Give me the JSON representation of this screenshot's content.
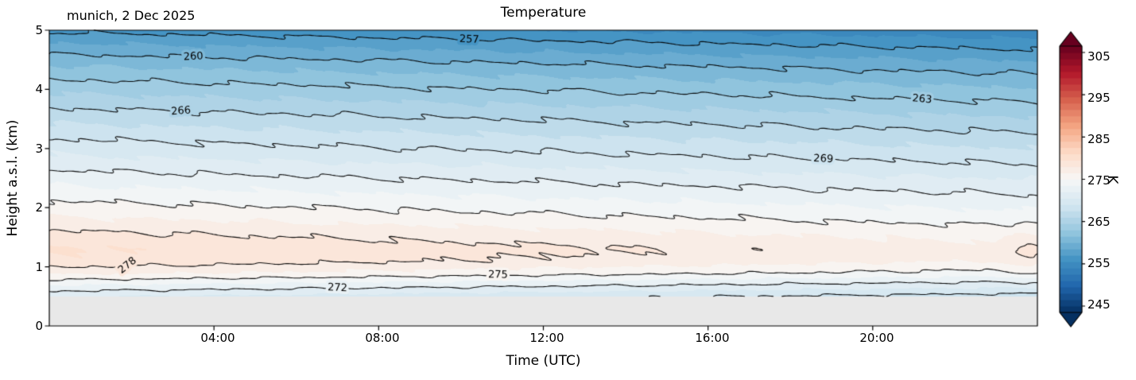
{
  "chart_data": {
    "type": "contour",
    "title": "Temperature",
    "annotation": "munich, 2 Dec 2025",
    "xlabel": "Time (UTC)",
    "ylabel": "Height a.s.l. (km)",
    "x_range_hours": [
      0,
      24
    ],
    "y_range_km": [
      0,
      5
    ],
    "x_ticks": [
      {
        "t": 4,
        "label": "04:00"
      },
      {
        "t": 8,
        "label": "08:00"
      },
      {
        "t": 12,
        "label": "12:00"
      },
      {
        "t": 16,
        "label": "16:00"
      },
      {
        "t": 20,
        "label": "20:00"
      }
    ],
    "y_ticks": [
      {
        "km": 0,
        "label": "0"
      },
      {
        "km": 1,
        "label": "1"
      },
      {
        "km": 2,
        "label": "2"
      },
      {
        "km": 3,
        "label": "3"
      },
      {
        "km": 4,
        "label": "4"
      },
      {
        "km": 5,
        "label": "5"
      }
    ],
    "terrain_height_km": 0.5,
    "terrain_color": "#e8e8e8",
    "grid": false,
    "colorbar": {
      "label": "K",
      "vmin": 243.5,
      "vmax": 306.5,
      "band_step": 1.5,
      "ticks": [
        245,
        255,
        265,
        275,
        285,
        295,
        305
      ],
      "colormap": "RdBu_r",
      "extend": "both",
      "colors": [
        "#053061",
        "#2166ac",
        "#4393c3",
        "#92c5de",
        "#d1e5f0",
        "#f7f7f7",
        "#fddbc7",
        "#f4a582",
        "#d6604d",
        "#b2182b",
        "#67001f"
      ]
    },
    "contour_line_levels": [
      257,
      260,
      263,
      266,
      269,
      272,
      275,
      278
    ],
    "contour_labels": [
      {
        "level": "257",
        "t": 10.2,
        "h": 4.84,
        "rot": 2
      },
      {
        "level": "260",
        "t": 3.5,
        "h": 4.55,
        "rot": -3
      },
      {
        "level": "263",
        "t": 21.2,
        "h": 3.83,
        "rot": 5
      },
      {
        "level": "266",
        "t": 3.2,
        "h": 3.63,
        "rot": -4
      },
      {
        "level": "269",
        "t": 18.8,
        "h": 2.82,
        "rot": 3
      },
      {
        "level": "272",
        "t": 7.0,
        "h": 0.64,
        "rot": 2
      },
      {
        "level": "275",
        "t": 10.9,
        "h": 0.86,
        "rot": 1
      },
      {
        "level": "278",
        "t": 1.9,
        "h": 1.02,
        "rot": -38
      }
    ],
    "temperature_field": {
      "profile_t0": [
        [
          0.5,
          270.6
        ],
        [
          0.7,
          273.5
        ],
        [
          0.9,
          276.5
        ],
        [
          1.1,
          278.3
        ],
        [
          1.3,
          278.8
        ],
        [
          1.6,
          277.6
        ],
        [
          2.0,
          275.6
        ],
        [
          2.4,
          273.4
        ],
        [
          2.8,
          271.0
        ],
        [
          3.2,
          268.8
        ],
        [
          3.6,
          266.5
        ],
        [
          4.0,
          264.1
        ],
        [
          4.4,
          261.5
        ],
        [
          4.8,
          258.4
        ],
        [
          5.0,
          256.7
        ]
      ],
      "cooling_K_per_hour": 0.1,
      "inversion_bump": {
        "center_km": 1.25,
        "sigma_km": 0.45,
        "amp_t0": 0.9,
        "amp_decay_per_hour": 0.016,
        "late_pulse": {
          "t": 23.8,
          "sigma_h": 0.55,
          "amp": 1.4
        }
      },
      "wiggle": [
        [
          0.16,
          2.6,
          11,
          0
        ],
        [
          0.13,
          4.1,
          23,
          2
        ],
        [
          0.1,
          7.3,
          37,
          4
        ],
        [
          0.07,
          11.7,
          53,
          1
        ]
      ]
    }
  }
}
